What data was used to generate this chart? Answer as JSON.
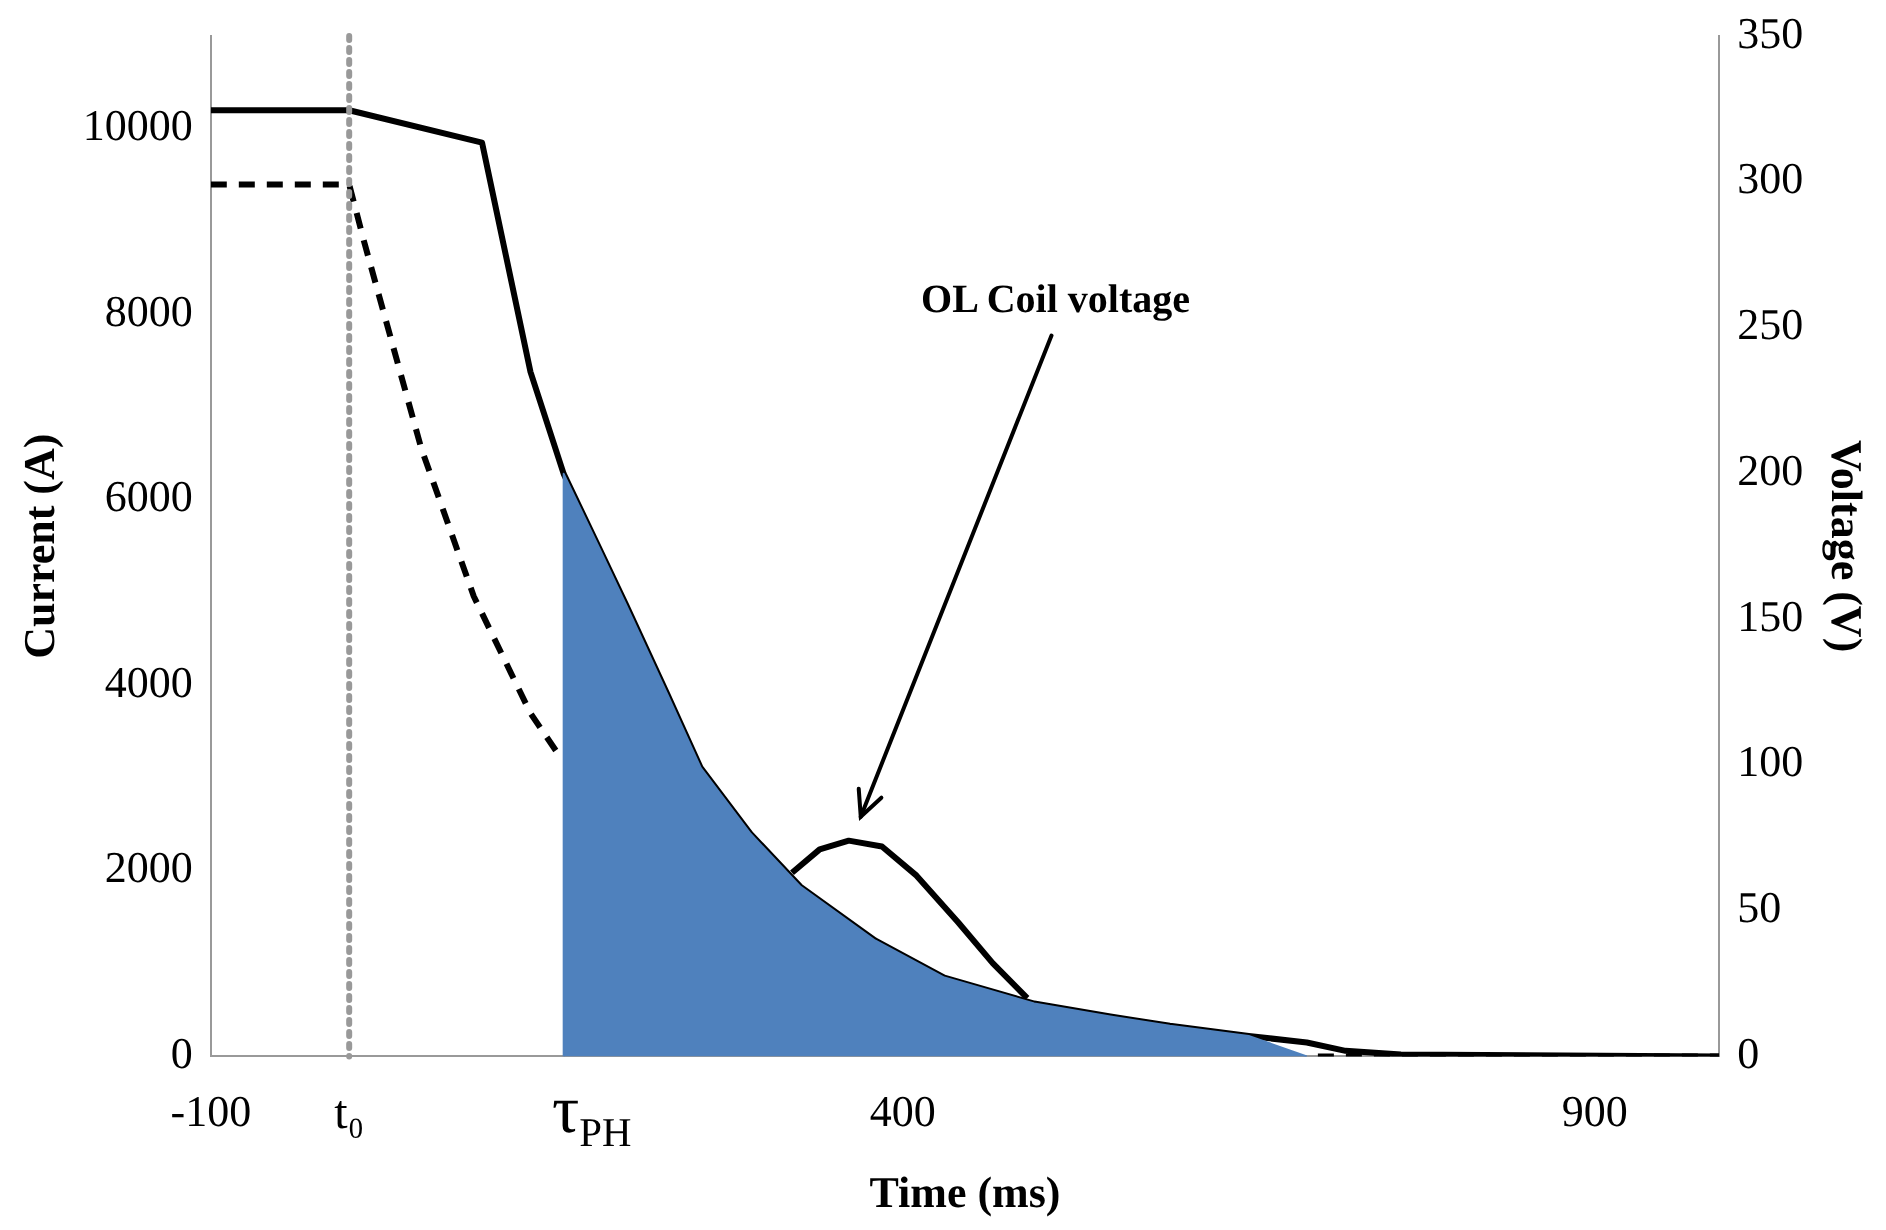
{
  "chart_data": {
    "type": "line",
    "xlabel": "Time (ms)",
    "ylabel": "Current (A)",
    "y2label": "Voltage (V)",
    "xlim": [
      -100,
      990
    ],
    "xticks": [
      -100,
      400,
      900
    ],
    "ylim": [
      0,
      11000
    ],
    "yticks": [
      0,
      2000,
      4000,
      6000,
      8000,
      10000
    ],
    "y2lim": [
      0,
      350
    ],
    "y2ticks": [
      0,
      50,
      100,
      150,
      200,
      250,
      300,
      350
    ],
    "grid": false,
    "legend": false,
    "ref_lines": [
      {
        "axis": "x",
        "value": 0,
        "label": "t₀",
        "color": "#999999",
        "line_style": "dotted"
      }
    ],
    "annotations": [
      {
        "text": "τ$_{PH}$",
        "x": 155,
        "y": 0
      },
      "OL Coil voltage"
    ],
    "series": [
      {
        "type": "area",
        "color": "#4f81bd",
        "x": [
          155,
          155,
          180,
          200,
          230,
          254,
          290,
          326,
          380,
          430,
          495,
          550,
          593,
          650,
          692
        ],
        "values": [
          0,
          6280,
          5500,
          4870,
          3900,
          3110,
          2400,
          1830,
          1250,
          850,
          570,
          430,
          330,
          220,
          0
        ]
      },
      {
        "type": "line",
        "color": "#000000",
        "line_style": "solid",
        "x": [
          -100,
          0,
          96,
          131,
          155,
          180,
          200,
          230,
          254,
          290,
          326,
          380,
          430,
          495,
          550,
          593,
          650,
          692,
          720,
          760,
          990
        ],
        "values": [
          10200,
          10200,
          9850,
          7380,
          6280,
          5500,
          4870,
          3900,
          3110,
          2400,
          1830,
          1250,
          850,
          570,
          430,
          330,
          220,
          150,
          60,
          20,
          0
        ]
      },
      {
        "type": "line",
        "color": "#000000",
        "line_style": "dashed",
        "x": [
          -100,
          0,
          11,
          52,
          90,
          131,
          151,
          170,
          700,
          990
        ],
        "values": [
          9400,
          9400,
          8770,
          6560,
          4960,
          3700,
          3260,
          null,
          0,
          0
        ]
      },
      {
        "type": "line",
        "color": "#000000",
        "line_style": "solid",
        "axis": "y2",
        "x": [
          320,
          340,
          361,
          385,
          410,
          440,
          465,
          490
        ],
        "values": [
          63,
          71,
          74,
          72,
          62,
          46,
          32,
          20
        ]
      }
    ]
  }
}
